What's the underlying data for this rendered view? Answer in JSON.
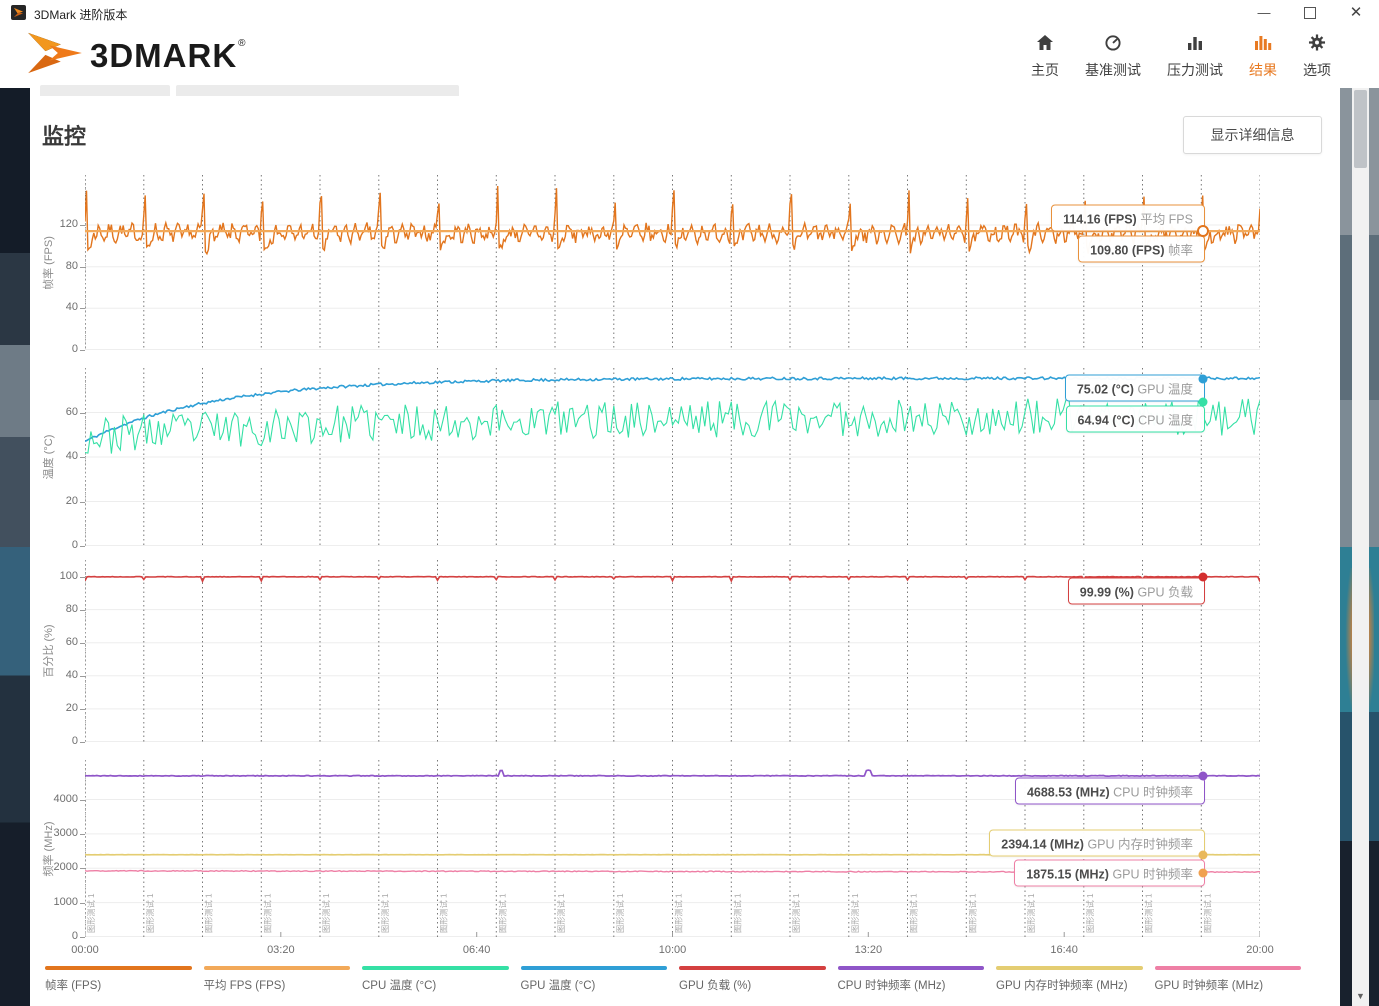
{
  "window": {
    "title": "3DMark 进阶版本",
    "minimize_glyph": "—",
    "close_glyph": "✕"
  },
  "header": {
    "logo_text": "3DMARK",
    "logo_reg": "®",
    "accent_color": "#e87a22",
    "nav": [
      {
        "id": "home",
        "label": "主页",
        "icon": "home-icon",
        "active": false
      },
      {
        "id": "benchmark",
        "label": "基准测试",
        "icon": "gauge-icon",
        "active": false
      },
      {
        "id": "stress",
        "label": "压力测试",
        "icon": "columns-icon",
        "active": false
      },
      {
        "id": "results",
        "label": "结果",
        "icon": "result-bars-icon",
        "active": true
      },
      {
        "id": "options",
        "label": "选项",
        "icon": "gear-icon",
        "active": false
      }
    ]
  },
  "page": {
    "title": "监控",
    "details_button": "显示详细信息"
  },
  "xaxis": {
    "ticks": [
      "00:00",
      "03:20",
      "06:40",
      "10:00",
      "13:20",
      "16:40",
      "20:00"
    ],
    "range_seconds": [
      0,
      1200
    ]
  },
  "loop_markers": {
    "count": 21,
    "interval_seconds": 60,
    "label": "图形测试 1"
  },
  "chart_data": [
    {
      "type": "line",
      "ylabel": "帧率 (FPS)",
      "ylim": [
        0,
        168
      ],
      "yticks": [
        120,
        80,
        40,
        0
      ],
      "grid": true,
      "series": [
        {
          "name": "帧率 (FPS)",
          "color": "#e2751d",
          "width": 1.4,
          "current": 109.8,
          "gen": {
            "kind": "fps",
            "seed": 7,
            "step": 1.5,
            "base": 112,
            "noise": 6,
            "peak": 149,
            "dip": 97
          }
        },
        {
          "name": "平均 FPS (FPS)",
          "color": "#f2a959",
          "width": 2.2,
          "current": 114.16,
          "gen": {
            "kind": "flat",
            "value": 114.16,
            "jitter": 0
          }
        }
      ],
      "tooltips": [
        {
          "value": "114.16 (FPS)",
          "label": "平均 FPS",
          "color": "#e8913c",
          "anchor": 114.16,
          "dy": -13,
          "dot": null
        },
        {
          "value": "109.80 (FPS)",
          "label": "帧率",
          "color": "#e8913c",
          "anchor": 114.16,
          "dy": 18,
          "dot": {
            "anchor": 114.16,
            "open": true,
            "color": "#e2751d"
          }
        }
      ]
    },
    {
      "type": "line",
      "ylabel": "温度 (°C)",
      "ylim": [
        0,
        80
      ],
      "yticks": [
        60,
        40,
        20,
        0
      ],
      "grid": true,
      "series": [
        {
          "name": "GPU 温度 (°C)",
          "color": "#2f9fd6",
          "width": 1.6,
          "current": 75.02,
          "gen": {
            "kind": "rise",
            "seed": 11,
            "step": 2,
            "start": 47,
            "end": 75.4,
            "tau": 130,
            "noise": 0.6
          }
        },
        {
          "name": "CPU 温度 (°C)",
          "color": "#35e0a5",
          "width": 1.1,
          "current": 64.94,
          "gen": {
            "kind": "osc",
            "seed": 23,
            "step": 3,
            "base": 49,
            "rise": 9,
            "tau": 260,
            "amp": 8.5
          }
        }
      ],
      "tooltips": [
        {
          "value": "75.02 (°C)",
          "label": "GPU 温度",
          "color": "#2f9fd6",
          "anchor": 75.02,
          "dy": 9,
          "dot": {
            "anchor": 75.02,
            "open": false,
            "color": "#2f9fd6"
          }
        },
        {
          "value": "64.94 (°C)",
          "label": "CPU 温度",
          "color": "#35e0a5",
          "anchor": 64.94,
          "dy": 17,
          "dot": {
            "anchor": 64.94,
            "open": false,
            "color": "#35e0a5"
          }
        }
      ]
    },
    {
      "type": "line",
      "ylabel": "百分比 (%)",
      "ylim": [
        0,
        110
      ],
      "yticks": [
        100,
        80,
        60,
        40,
        20,
        0
      ],
      "grid": true,
      "series": [
        {
          "name": "GPU 负载 (%)",
          "color": "#d44040",
          "width": 1.6,
          "current": 99.99,
          "gen": {
            "kind": "load",
            "seed": 31,
            "step": 2,
            "value": 100
          }
        }
      ],
      "tooltips": [
        {
          "value": "99.99 (%)",
          "label": "GPU 负载",
          "color": "#d44040",
          "anchor": 99.99,
          "dy": 14,
          "dot": {
            "anchor": 99.99,
            "open": false,
            "color": "#d42f2f"
          }
        }
      ]
    },
    {
      "type": "line",
      "ylabel": "频率 (MHz)",
      "ylim": [
        0,
        5150
      ],
      "yticks": [
        4000,
        3000,
        2000,
        1000,
        0
      ],
      "grid": true,
      "series": [
        {
          "name": "CPU 时钟频率 (MHz)",
          "color": "#8f55c8",
          "width": 1.7,
          "current": 4688.53,
          "gen": {
            "kind": "cpuclk",
            "seed": 41,
            "step": 2,
            "value": 4690,
            "spikes": [
              425,
              800
            ]
          }
        },
        {
          "name": "GPU 内存时钟频率 (MHz)",
          "color": "#e4cd72",
          "width": 1.7,
          "current": 2394.14,
          "gen": {
            "kind": "flat",
            "value": 2394,
            "jitter": 3,
            "seed": 43,
            "step": 2
          }
        },
        {
          "name": "GPU 时钟频率 (MHz)",
          "color": "#ee7fa5",
          "width": 1.4,
          "current": 1875.15,
          "gen": {
            "kind": "drift",
            "seed": 47,
            "step": 2,
            "start": 1925,
            "slope": 0.03,
            "amp": 12
          }
        }
      ],
      "tooltips": [
        {
          "value": "4688.53 (MHz)",
          "label": "CPU 时钟频率",
          "color": "#8f55c8",
          "anchor": 4688.53,
          "dy": 15,
          "dot": {
            "anchor": 4688.53,
            "open": false,
            "color": "#8f55c8"
          }
        },
        {
          "value": "2394.14 (MHz)",
          "label": "GPU 内存时钟频率",
          "color": "#e4cd72",
          "anchor": 2394.14,
          "dy": -12,
          "dot": {
            "anchor": 2394.14,
            "open": false,
            "color": "#e9b85a"
          }
        },
        {
          "value": "1875.15 (MHz)",
          "label": "GPU 时钟频率",
          "color": "#ee7fa5",
          "anchor": 1875.15,
          "dy": 0,
          "dot": {
            "anchor": 1875.15,
            "open": false,
            "color": "#f0a050"
          }
        }
      ]
    }
  ],
  "legend": [
    {
      "label": "帧率 (FPS)",
      "color": "#e2751d"
    },
    {
      "label": "平均 FPS (FPS)",
      "color": "#f2a959"
    },
    {
      "label": "CPU 温度 (°C)",
      "color": "#35e0a5"
    },
    {
      "label": "GPU 温度 (°C)",
      "color": "#2f9fd6"
    },
    {
      "label": "GPU 负载 (%)",
      "color": "#d44040"
    },
    {
      "label": "CPU 时钟频率 (MHz)",
      "color": "#8f55c8"
    },
    {
      "label": "GPU 内存时钟频率 (MHz)",
      "color": "#e4cd72"
    },
    {
      "label": "GPU 时钟频率 (MHz)",
      "color": "#ee7fa5"
    }
  ]
}
